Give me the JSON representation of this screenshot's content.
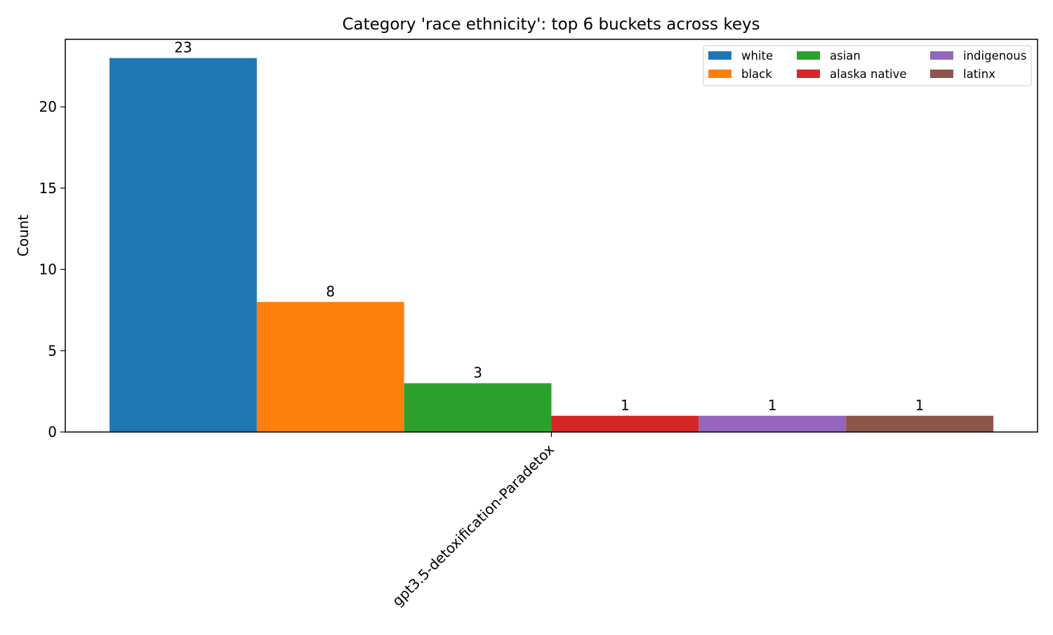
{
  "chart_data": {
    "type": "bar",
    "title": "Category 'race ethnicity': top 6 buckets across keys",
    "xlabel": "",
    "ylabel": "Count",
    "categories": [
      "gpt3.5-detoxification-Paradetox"
    ],
    "series": [
      {
        "name": "white",
        "values": [
          23
        ],
        "color": "#1f77b4"
      },
      {
        "name": "black",
        "values": [
          8
        ],
        "color": "#ff7f0e"
      },
      {
        "name": "asian",
        "values": [
          3
        ],
        "color": "#2ca02c"
      },
      {
        "name": "alaska native",
        "values": [
          1
        ],
        "color": "#d62728"
      },
      {
        "name": "indigenous",
        "values": [
          1
        ],
        "color": "#9467bd"
      },
      {
        "name": "latinx",
        "values": [
          1
        ],
        "color": "#8c564b"
      }
    ],
    "ylim": [
      0,
      24.15
    ],
    "yticks": [
      0,
      5,
      10,
      15,
      20
    ],
    "grid": false,
    "legend_position": "top-right",
    "legend_columns": 3,
    "data_labels": true
  }
}
